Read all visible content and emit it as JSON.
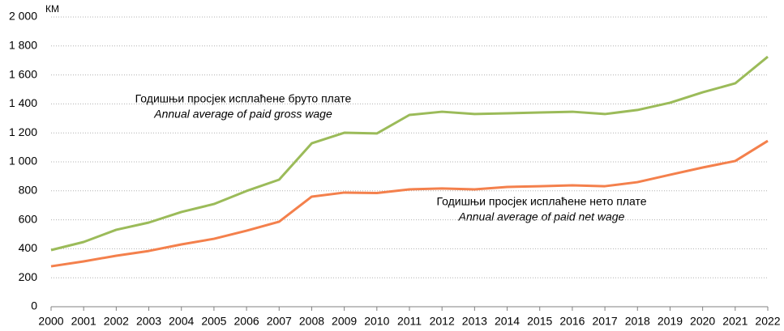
{
  "chart_data": {
    "type": "line",
    "unit": "КМ",
    "categories": [
      "2000",
      "2001",
      "2002",
      "2003",
      "2004",
      "2005",
      "2006",
      "2007",
      "2008",
      "2009",
      "2010",
      "2011",
      "2012",
      "2013",
      "2014",
      "2015",
      "2016",
      "2017",
      "2018",
      "2019",
      "2020",
      "2021",
      "2022"
    ],
    "series": [
      {
        "name": "Годишњи просјек  исплаћене бруто плате",
        "name_en": "Annual average of paid gross wage",
        "color": "#9bbb59",
        "values": [
          391,
          447,
          531,
          581,
          654,
          709,
          799,
          877,
          1128,
          1201,
          1196,
          1324,
          1346,
          1330,
          1335,
          1341,
          1346,
          1330,
          1358,
          1408,
          1480,
          1542,
          1726
        ]
      },
      {
        "name": "Годишњи просјек исплаћене нето плате",
        "name_en": "Annual average of paid net wage",
        "color": "#f4804c",
        "values": [
          279,
          313,
          352,
          385,
          430,
          469,
          525,
          587,
          760,
          788,
          785,
          810,
          816,
          810,
          827,
          832,
          838,
          832,
          860,
          911,
          961,
          1006,
          1145
        ]
      }
    ],
    "ylim": [
      0,
      2000
    ],
    "yticks": [
      0,
      200,
      400,
      600,
      800,
      {
        "value": 1000,
        "label": "1 000"
      },
      {
        "value": 1200,
        "label": "1 200"
      },
      {
        "value": 1400,
        "label": "1 400"
      },
      {
        "value": 1600,
        "label": "1 600"
      },
      {
        "value": 1800,
        "label": "1 800"
      },
      {
        "value": 2000,
        "label": "2 000"
      }
    ],
    "grid": true
  }
}
